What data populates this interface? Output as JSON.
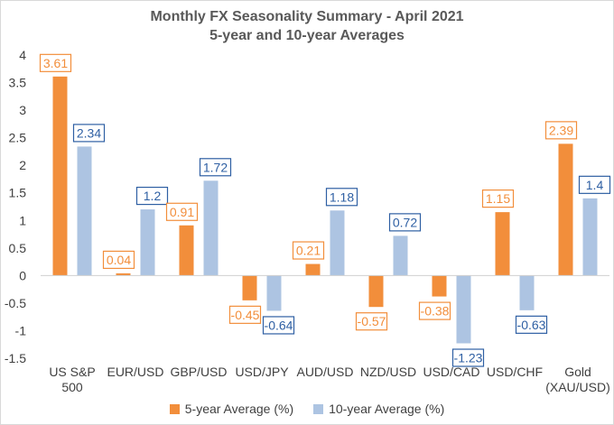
{
  "chart_data": {
    "type": "bar",
    "title": "Monthly FX Seasonality Summary - April 2021",
    "subtitle": "5-year and 10-year Averages",
    "categories": [
      [
        "US S&P",
        "500"
      ],
      [
        "EUR/USD"
      ],
      [
        "GBP/USD"
      ],
      [
        "USD/JPY"
      ],
      [
        "AUD/USD"
      ],
      [
        "NZD/USD"
      ],
      [
        "USD/CAD"
      ],
      [
        "USD/CHF"
      ],
      [
        "Gold",
        "(XAU/USD)"
      ]
    ],
    "series": [
      {
        "name": "5-year Average (%)",
        "color": "#f28e3b",
        "labelColor": "#f28e3b",
        "values": [
          3.61,
          0.04,
          0.91,
          -0.45,
          0.21,
          -0.57,
          -0.38,
          1.15,
          2.39
        ],
        "labels": [
          "3.61",
          "0.04",
          "0.91",
          "-0.45",
          "0.21",
          "-0.57",
          "-0.38",
          "1.15",
          "2.39"
        ]
      },
      {
        "name": "10-year Average (%)",
        "color": "#adc4e2",
        "labelColor": "#2e5fa3",
        "values": [
          2.34,
          1.2,
          1.72,
          -0.64,
          1.18,
          0.72,
          -1.23,
          -0.63,
          1.4
        ],
        "labels": [
          "2.34",
          "1.2",
          "1.72",
          "-0.64",
          "1.18",
          "0.72",
          "-1.23",
          "-0.63",
          "1.4"
        ]
      }
    ],
    "yticks": [
      "4",
      "3.5",
      "3",
      "2.5",
      "2",
      "1.5",
      "1",
      "0.5",
      "0",
      "-0.5",
      "-1",
      "-1.5"
    ],
    "ylim": [
      -1.5,
      4
    ],
    "grid": false,
    "legend_position": "bottom"
  }
}
